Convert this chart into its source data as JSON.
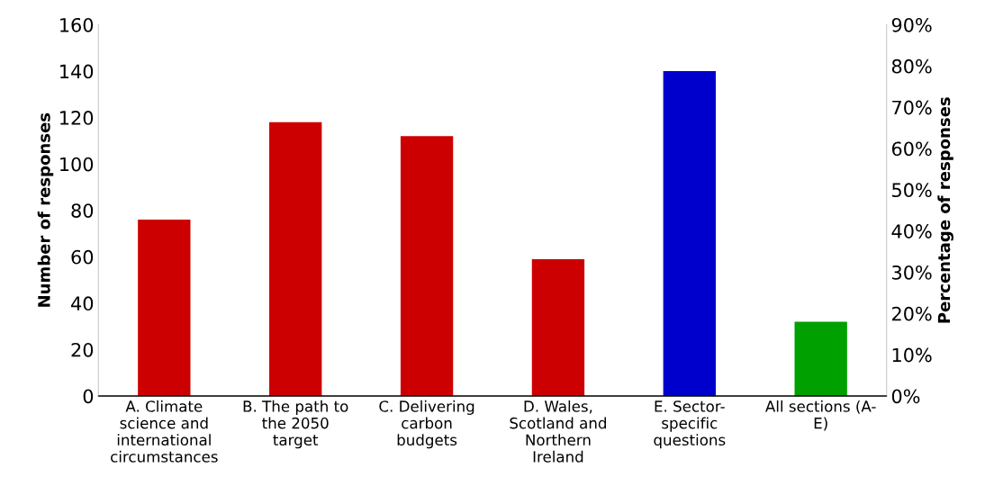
{
  "chart_data": {
    "type": "bar",
    "categories": [
      "A. Climate\nscience and\ninternational\ncircumstances",
      "B. The path to\nthe 2050\ntarget",
      "C. Delivering\ncarbon\nbudgets",
      "D. Wales,\nScotland and\nNorthern\nIreland",
      "E. Sector-\nspecific\nquestions",
      "All sections (A-\nE)"
    ],
    "values": [
      76,
      118,
      112,
      59,
      140,
      32
    ],
    "colors": [
      "#cc0000",
      "#cc0000",
      "#cc0000",
      "#cc0000",
      "#0000cc",
      "#00a000"
    ],
    "ylabel": "Number of responses",
    "y2label": "Percentage of responses",
    "ylim": [
      0,
      160
    ],
    "yticks": [
      0,
      20,
      40,
      60,
      80,
      100,
      120,
      140,
      160
    ],
    "y2lim": [
      0,
      90
    ],
    "y2ticks": [
      {
        "value": 0,
        "label": "0%"
      },
      {
        "value": 10,
        "label": "10%"
      },
      {
        "value": 20,
        "label": "20%"
      },
      {
        "value": 30,
        "label": "30%"
      },
      {
        "value": 40,
        "label": "40%"
      },
      {
        "value": 50,
        "label": "50%"
      },
      {
        "value": 60,
        "label": "60%"
      },
      {
        "value": 70,
        "label": "70%"
      },
      {
        "value": 80,
        "label": "80%"
      },
      {
        "value": 90,
        "label": "90%"
      }
    ],
    "grid": false,
    "legend": false
  }
}
